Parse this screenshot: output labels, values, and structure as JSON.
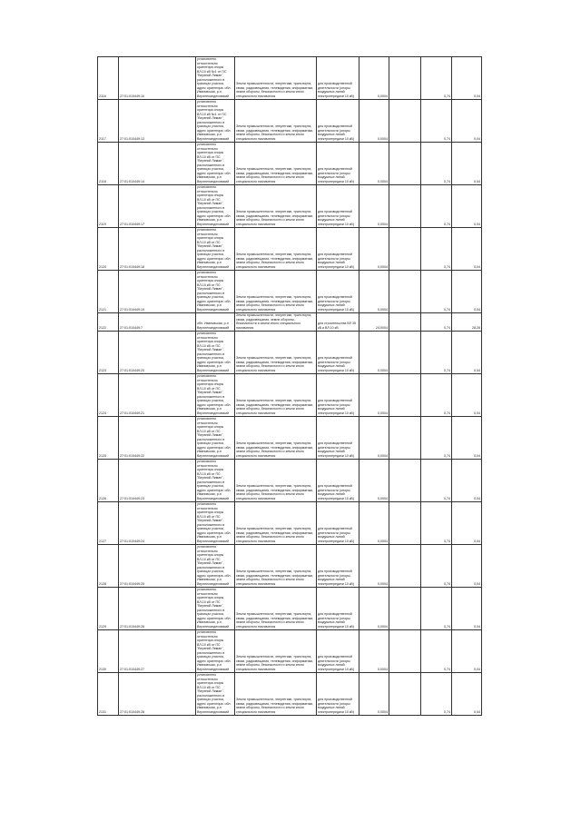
{
  "table": {
    "rows": [
      {
        "no": "2116",
        "cadastral": "27:01:010449:10",
        "location": "установлено относительно ориентира опоры ВЛ-10 кВ №1 от ПС \"Верхний Лиман\", расположенного в границах участка, адрес ориентира: обл. Ивановская, р-н Верхнеландеховский",
        "category": "Земли промышленности, энергетики, транспорта, связи, радиовещания, телевидения, информатики, земли обороны, безопасности и земли иного специального назначения",
        "purpose": "для производственной деятельности (опоры воздушных линий электропередачи 10 кВ)",
        "area": "0,0004",
        "v1": "0,74",
        "v2": "0,04"
      },
      {
        "no": "2117",
        "cadastral": "27:01:010449:13",
        "location": "установлено относительно ориентира опоры ВЛ-10 кВ №1 от ПС \"Верхний Лиман\", расположенного в границах участка, адрес ориентира: обл. Ивановская, р-н Верхнеландеховский",
        "category": "Земли промышленности, энергетики, транспорта, связи, радиовещания, телевидения, информатики, земли обороны, безопасности и земли иного специального назначения",
        "purpose": "для производственной деятельности (опоры воздушных линий электропередачи 10 кВ)",
        "area": "0,0004",
        "v1": "0,74",
        "v2": "0,04"
      },
      {
        "no": "2118",
        "cadastral": "27:01:010449:14",
        "location": "установлено относительно ориентира опоры ВЛ-10 кВ от ПС \"Верхний Лиман\", расположенного в границах участка, адрес ориентира: обл. Ивановская, р-н Верхнеландеховский",
        "category": "Земли промышленности, энергетики, транспорта, связи, радиовещания, телевидения, информатики, земли обороны, безопасности и земли иного специального назначения",
        "purpose": "для производственной деятельности (опоры воздушных линий электропередачи 10 кВ)",
        "area": "0,0004",
        "v1": "0,74",
        "v2": "0,04"
      },
      {
        "no": "2119",
        "cadastral": "27:01:010449:17",
        "location": "установлено относительно ориентира опоры ВЛ-10 кВ от ПС \"Верхний Лиман\", расположенного в границах участка, адрес ориентира: обл. Ивановская, р-н Верхнеландеховский",
        "category": "Земли промышленности, энергетики, транспорта, связи, радиовещания, телевидения, информатики, земли обороны, безопасности и земли иного специального назначения",
        "purpose": "для производственной деятельности (опоры воздушных линий электропередачи 10 кВ)",
        "area": "0,0004",
        "v1": "0,74",
        "v2": "0,04"
      },
      {
        "no": "2120",
        "cadastral": "27:01:010449:18",
        "location": "установлено относительно ориентира опоры ВЛ-10 кВ от ПС \"Верхний Лиман\", расположенного в границах участка, адрес ориентира: обл. Ивановская, р-н Верхнеландеховский",
        "category": "Земли промышленности, энергетики, транспорта, связи, радиовещания, телевидения, информатики, земли обороны, безопасности и земли иного специального назначения",
        "purpose": "для производственной деятельности (опоры воздушных линий электропередачи 10 кВ)",
        "area": "0,0004",
        "v1": "0,74",
        "v2": "0,04"
      },
      {
        "no": "2121",
        "cadastral": "27:01:010449:19",
        "location": "установлено относительно ориентира опоры ВЛ-10 кВ от ПС \"Верхний Лиман\", расположенного в границах участка, адрес ориентира: обл. Ивановская, р-н Верхнеландеховский",
        "category": "Земли промышленности, энергетики, транспорта, связи, радиовещания, телевидения, информатики, земли обороны, безопасности и земли иного специального назначения",
        "purpose": "для производственной деятельности (опоры воздушных линий электропередачи 10 кВ)",
        "area": "0,0004",
        "v1": "0,74",
        "v2": "0,04"
      },
      {
        "no": "2122",
        "cadastral": "27:01:010449:7",
        "location": "обл. Ивановская, р-н Верхнеландеховский",
        "category": "Земли промышленности, энергетики, транспорта, связи, радиовещания, земли обороны, безопасности и земли иного специального назначения",
        "purpose": "для строительства ВЛ 35 кВ и ВЛ 10 кВ",
        "area": "24,0004",
        "v1": "0,74",
        "v2": "28,28"
      },
      {
        "no": "2123",
        "cadastral": "27:01:010449:20",
        "location": "установлено относительно ориентира опоры ВЛ-10 кВ от ПС \"Верхний Лиман\", расположенного в границах участка, адрес ориентира: обл. Ивановская, р-н Верхнеландеховский",
        "category": "Земли промышленности, энергетики, транспорта, связи, радиовещания, телевидения, информатики, земли обороны, безопасности и земли иного специального назначения",
        "purpose": "для производственной деятельности (опоры воздушных линий электропередачи 10 кВ)",
        "area": "0,0004",
        "v1": "0,74",
        "v2": "0,04"
      },
      {
        "no": "2124",
        "cadastral": "27:01:010449:21",
        "location": "установлено относительно ориентира опоры ВЛ-10 кВ от ПС \"Верхний Лиман\", расположенного в границах участка, адрес ориентира: обл. Ивановская, р-н Верхнеландеховский",
        "category": "Земли промышленности, энергетики, транспорта, связи, радиовещания, телевидения, информатики, земли обороны, безопасности и земли иного специального назначения",
        "purpose": "для производственной деятельности (опоры воздушных линий электропередачи 10 кВ)",
        "area": "0,0004",
        "v1": "0,74",
        "v2": "0,04"
      },
      {
        "no": "2125",
        "cadastral": "27:01:010449:22",
        "location": "установлено относительно ориентира опоры ВЛ-10 кВ от ПС \"Верхний Лиман\", расположенного в границах участка, адрес ориентира: обл. Ивановская, р-н Верхнеландеховский",
        "category": "Земли промышленности, энергетики, транспорта, связи, радиовещания, телевидения, информатики, земли обороны, безопасности и земли иного специального назначения",
        "purpose": "для производственной деятельности (опоры воздушных линий электропередачи 10 кВ)",
        "area": "0,0004",
        "v1": "0,74",
        "v2": "0,04"
      },
      {
        "no": "2126",
        "cadastral": "27:01:010449:23",
        "location": "установлено относительно ориентира опоры ВЛ-10 кВ от ПС \"Верхний Лиман\", расположенного в границах участка, адрес ориентира: обл. Ивановская, р-н Верхнеландеховский",
        "category": "Земли промышленности, энергетики, транспорта, связи, радиовещания, телевидения, информатики, земли обороны, безопасности и земли иного специального назначения",
        "purpose": "для производственной деятельности (опоры воздушных линий электропередачи 10 кВ)",
        "area": "0,0004",
        "v1": "0,74",
        "v2": "0,04"
      },
      {
        "no": "2127",
        "cadastral": "27:01:010449:24",
        "location": "установлено относительно ориентира опоры ВЛ-10 кВ от ПС \"Верхний Лиман\", расположенного в границах участка, адрес ориентира: обл. Ивановская, р-н Верхнеландеховский",
        "category": "Земли промышленности, энергетики, транспорта, связи, радиовещания, телевидения, информатики, земли обороны, безопасности и земли иного специального назначения",
        "purpose": "для производственной деятельности (опоры воздушных линий электропередачи 10 кВ)",
        "area": "0,0004",
        "v1": "0,74",
        "v2": "0,04"
      },
      {
        "no": "2128",
        "cadastral": "27:01:010449:25",
        "location": "установлено относительно ориентира опоры ВЛ-10 кВ от ПС \"Верхний Лиман\", расположенного в границах участка, адрес ориентира: обл. Ивановская, р-н Верхнеландеховский",
        "category": "Земли промышленности, энергетики, транспорта, связи, радиовещания, телевидения, информатики, земли обороны, безопасности и земли иного специального назначения",
        "purpose": "для производственной деятельности (опоры воздушных линий электропередачи 10 кВ)",
        "area": "0,0004",
        "v1": "0,74",
        "v2": "0,04"
      },
      {
        "no": "2129",
        "cadastral": "27:01:010449:26",
        "location": "установлено относительно ориентира опоры ВЛ-10 кВ от ПС \"Верхний Лиман\", расположенного в границах участка, адрес ориентира: обл. Ивановская, р-н Верхнеландеховский",
        "category": "Земли промышленности, энергетики, транспорта, связи, радиовещания, телевидения, информатики, земли обороны, безопасности и земли иного специального назначения",
        "purpose": "для производственной деятельности (опоры воздушных линий электропередачи 10 кВ)",
        "area": "0,0004",
        "v1": "0,74",
        "v2": "0,04"
      },
      {
        "no": "2130",
        "cadastral": "27:01:010449:27",
        "location": "установлено относительно ориентира опоры ВЛ-10 кВ от ПС \"Верхний Лиман\", расположенного в границах участка, адрес ориентира: обл. Ивановская, р-н Верхнеландеховский",
        "category": "Земли промышленности, энергетики, транспорта, связи, радиовещания, телевидения, информатики, земли обороны, безопасности и земли иного специального назначения",
        "purpose": "для производственной деятельности (опоры воздушных линий электропередачи 10 кВ)",
        "area": "0,0004",
        "v1": "0,74",
        "v2": "0,04"
      },
      {
        "no": "2131",
        "cadastral": "27:01:010449:28",
        "location": "установлено относительно ориентира опоры ВЛ-10 кВ от ПС \"Верхний Лиман\", расположенного в границах участка, адрес ориентира: обл. Ивановская, р-н Верхнеландеховский",
        "category": "Земли промышленности, энергетики, транспорта, связи, радиовещания, телевидения, информатики, земли обороны, безопасности и земли иного специального назначения",
        "purpose": "для производственной деятельности (опоры воздушных линий электропередачи 10 кВ)",
        "area": "0,0004",
        "v1": "0,74",
        "v2": "0,04"
      }
    ]
  }
}
